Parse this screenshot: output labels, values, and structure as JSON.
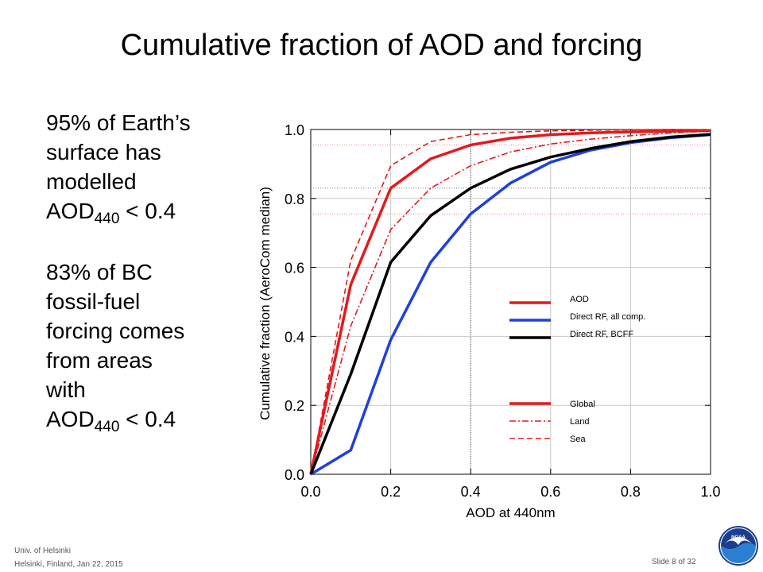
{
  "slide": {
    "title": "Cumulative fraction of AOD and forcing",
    "bullet1": {
      "l1": "95% of Earth’s",
      "l2": "surface has",
      "l3": "modelled",
      "aod": "AOD",
      "sub": "440",
      "rest": " < 0.4"
    },
    "bullet2": {
      "l1": "83% of BC",
      "l2": "fossil-fuel",
      "l3": "forcing comes",
      "l4": "from areas",
      "l5": "with",
      "aod": "AOD",
      "sub": "440",
      "rest": " < 0.4"
    },
    "footer": {
      "org": "Univ. of Helsinki",
      "event": "Helsinki, Finland, Jan 22, 2015",
      "slide_num": "Slide 8 of 32"
    },
    "logo_icon": "noaa-logo"
  },
  "chart_data": {
    "type": "line",
    "xlabel": "AOD at 440nm",
    "ylabel": "Cumulative fraction (AeroCom median)",
    "xlim": [
      0,
      1
    ],
    "ylim": [
      0,
      1
    ],
    "xticks": [
      "0.0",
      "0.2",
      "0.4",
      "0.6",
      "0.8",
      "1.0"
    ],
    "yticks": [
      "0.0",
      "0.2",
      "0.4",
      "0.6",
      "0.8",
      "1.0"
    ],
    "x": [
      0.0,
      0.1,
      0.2,
      0.3,
      0.4,
      0.5,
      0.6,
      0.7,
      0.8,
      0.9,
      1.0
    ],
    "series": [
      {
        "variable": "AOD",
        "region": "Global",
        "color": "#e41a1c",
        "style": "solid",
        "values": [
          0.0,
          0.55,
          0.83,
          0.915,
          0.955,
          0.975,
          0.985,
          0.99,
          0.993,
          0.995,
          0.997
        ]
      },
      {
        "variable": "AOD",
        "region": "Land",
        "color": "#e41a1c",
        "style": "dashdot",
        "values": [
          0.0,
          0.43,
          0.71,
          0.83,
          0.895,
          0.935,
          0.958,
          0.972,
          0.982,
          0.99,
          0.995
        ]
      },
      {
        "variable": "AOD",
        "region": "Sea",
        "color": "#e41a1c",
        "style": "dashed",
        "values": [
          0.0,
          0.62,
          0.895,
          0.965,
          0.985,
          0.992,
          0.996,
          0.998,
          0.999,
          1.0,
          1.0
        ]
      },
      {
        "variable": "Direct RF, all comp.",
        "region": "Global",
        "color": "#1f3fe0",
        "style": "solid",
        "values": [
          0.0,
          0.07,
          0.39,
          0.615,
          0.755,
          0.845,
          0.905,
          0.94,
          0.962,
          0.976,
          0.985
        ]
      },
      {
        "variable": "Direct RF, BCFF",
        "region": "Global",
        "color": "#000000",
        "style": "solid",
        "values": [
          0.0,
          0.29,
          0.615,
          0.75,
          0.83,
          0.885,
          0.92,
          0.945,
          0.965,
          0.978,
          0.986
        ]
      }
    ],
    "reference_lines": {
      "x": [
        0.4
      ],
      "y": [
        0.955,
        0.83,
        0.755
      ]
    },
    "legend": {
      "placement": "lower-right",
      "variables": [
        {
          "label": "AOD",
          "color": "#e41a1c"
        },
        {
          "label": "Direct RF, all comp.",
          "color": "#1f3fe0"
        },
        {
          "label": "Direct RF, BCFF",
          "color": "#000000"
        }
      ],
      "styles": [
        {
          "label": "Global",
          "style": "solid"
        },
        {
          "label": "Land",
          "style": "dashdot"
        },
        {
          "label": "Sea",
          "style": "dashed"
        }
      ]
    },
    "grid": true
  }
}
